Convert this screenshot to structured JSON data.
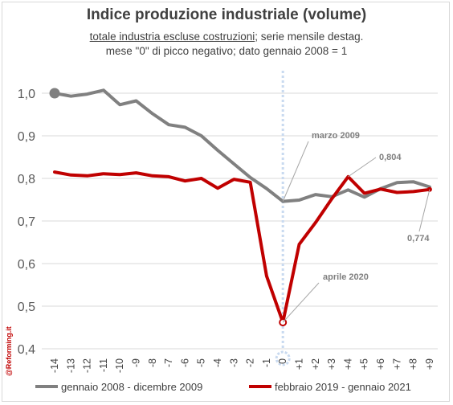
{
  "chart_data": {
    "type": "line",
    "title": "Indice produzione industriale (volume)",
    "subtitle_underlined": "totale industria escluse costruzioni",
    "subtitle_rest": "; serie mensile destag.",
    "subtitle_line2": "mese \"0\" di picco negativo; dato gennaio 2008 = 1",
    "x": [
      "-14",
      "-13",
      "-12",
      "-11",
      "-10",
      "-9",
      "-8",
      "-7",
      "-6",
      "-5",
      "-4",
      "-3",
      "-2",
      "-1",
      "0",
      "+1",
      "+2",
      "+3",
      "+4",
      "+5",
      "+6",
      "+7",
      "+8",
      "+9"
    ],
    "y_tick_labels": [
      "0,4",
      "0,5",
      "0,6",
      "0,7",
      "0,8",
      "0,9",
      "1,0"
    ],
    "ylim": [
      0.4,
      1.05
    ],
    "grid": true,
    "legend_position": "bottom",
    "series": [
      {
        "name": "gennaio 2008 - dicembre 2009",
        "color": "#808080",
        "values": [
          1.0,
          0.993,
          0.998,
          1.007,
          0.973,
          0.982,
          0.952,
          0.926,
          0.92,
          0.9,
          0.866,
          0.834,
          0.802,
          0.776,
          0.746,
          0.749,
          0.762,
          0.757,
          0.773,
          0.756,
          0.776,
          0.79,
          0.792,
          0.78
        ]
      },
      {
        "name": "febbraio 2019 - gennaio 2021",
        "color": "#c00000",
        "values": [
          0.815,
          0.808,
          0.806,
          0.811,
          0.809,
          0.813,
          0.806,
          0.804,
          0.794,
          0.8,
          0.777,
          0.798,
          0.791,
          0.571,
          0.462,
          0.645,
          0.696,
          0.752,
          0.804,
          0.765,
          0.775,
          0.767,
          0.769,
          0.774
        ]
      }
    ],
    "annotations": [
      {
        "text": "marzo 2009"
      },
      {
        "text": "0,804"
      },
      {
        "text": "aprile 2020"
      },
      {
        "text": "0,774"
      }
    ]
  },
  "watermark": "@Reforming.it"
}
